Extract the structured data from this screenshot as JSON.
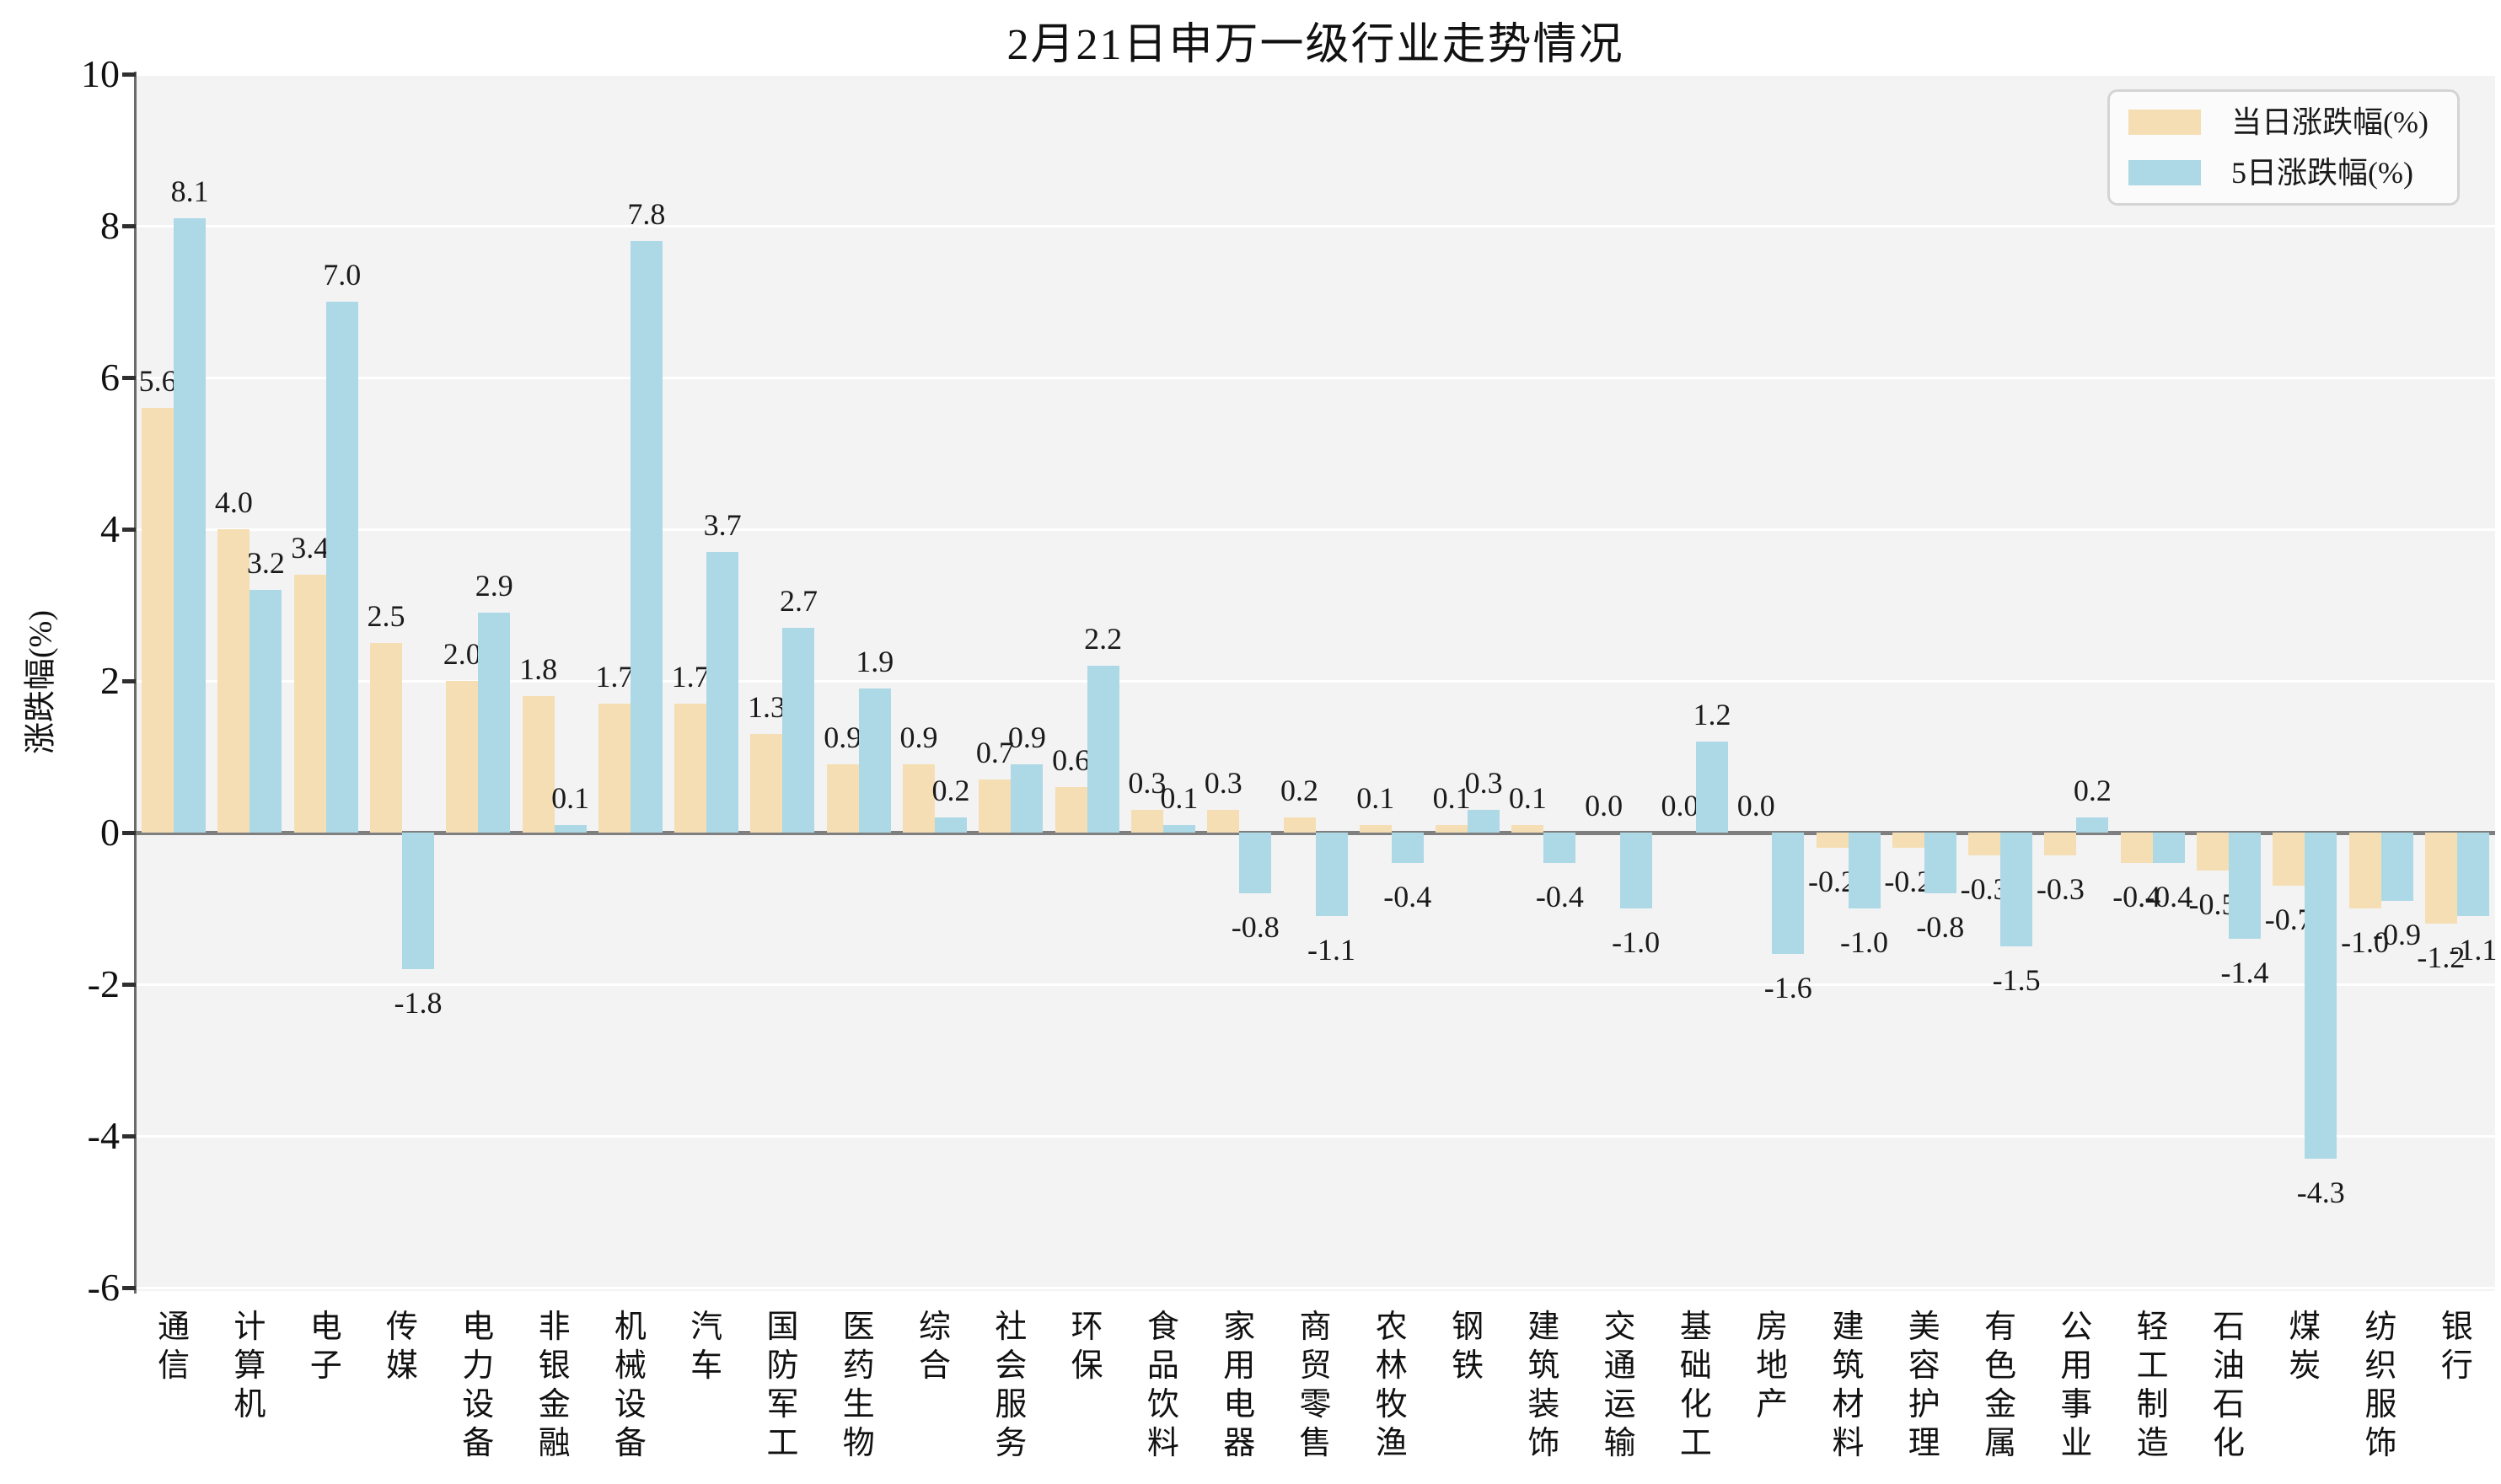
{
  "figure": {
    "title": "2月21日申万一级行业走势情况"
  },
  "chart_data": {
    "type": "bar",
    "title": "2月21日申万一级行业走势情况",
    "xlabel": "",
    "ylabel": "涨跌幅(%)",
    "ylim": [
      -6,
      10
    ],
    "yticks": [
      10,
      8,
      6,
      4,
      2,
      0,
      -2,
      -4,
      -6
    ],
    "grid": true,
    "legend_position": "upper right",
    "value_labels": true,
    "categories": [
      "通信",
      "计算机",
      "电子",
      "传媒",
      "电力设备",
      "非银金融",
      "机械设备",
      "汽车",
      "国防军工",
      "医药生物",
      "综合",
      "社会服务",
      "环保",
      "食品饮料",
      "家用电器",
      "商贸零售",
      "农林牧渔",
      "钢铁",
      "建筑装饰",
      "交通运输",
      "基础化工",
      "房地产",
      "建筑材料",
      "美容护理",
      "有色金属",
      "公用事业",
      "轻工制造",
      "石油石化",
      "煤炭",
      "纺织服饰",
      "银行"
    ],
    "series": [
      {
        "name": "当日涨跌幅(%)",
        "color": "#f5deb3",
        "values": [
          5.6,
          4.0,
          3.4,
          2.5,
          2.0,
          1.8,
          1.7,
          1.7,
          1.3,
          0.9,
          0.9,
          0.7,
          0.6,
          0.3,
          0.3,
          0.2,
          0.1,
          0.1,
          0.1,
          0.0,
          0.0,
          0.0,
          -0.2,
          -0.2,
          -0.3,
          -0.3,
          -0.4,
          -0.5,
          -0.7,
          -1.0,
          -1.2
        ]
      },
      {
        "name": "5日涨跌幅(%)",
        "color": "#add8e6",
        "values": [
          8.1,
          3.2,
          7.0,
          -1.8,
          2.9,
          0.1,
          7.8,
          3.7,
          2.7,
          1.9,
          0.2,
          0.9,
          2.2,
          0.1,
          -0.8,
          -1.1,
          -0.4,
          0.3,
          -0.4,
          -1.0,
          1.2,
          -1.6,
          -1.0,
          -0.8,
          -1.5,
          0.2,
          -0.4,
          -1.4,
          -4.3,
          -0.9,
          -1.1
        ]
      }
    ],
    "colors": {
      "plot_background": "#f3f3f3",
      "gridline": "#ffffff",
      "zero_line": "#7f7f7f",
      "axis_spine": "#6b6b6b",
      "text": "#1a1a1a"
    }
  }
}
